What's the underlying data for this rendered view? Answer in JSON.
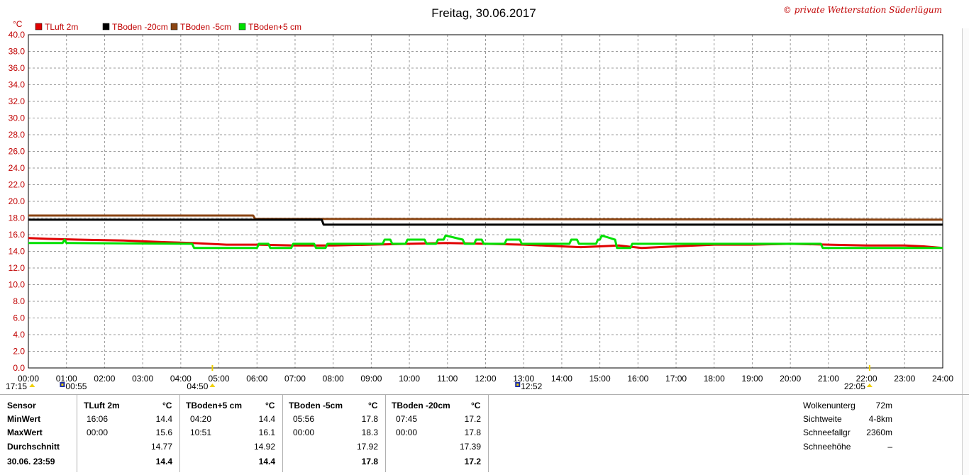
{
  "title": "Freitag, 30.06.2017",
  "copyright": "© private Wetterstation Süderlügum",
  "chart_data": {
    "type": "line",
    "ylabel": "°C",
    "ylim": [
      0,
      40
    ],
    "yticks": [
      "0.0",
      "2.0",
      "4.0",
      "6.0",
      "8.0",
      "10.0",
      "12.0",
      "14.0",
      "16.0",
      "18.0",
      "20.0",
      "22.0",
      "24.0",
      "26.0",
      "28.0",
      "30.0",
      "32.0",
      "34.0",
      "36.0",
      "38.0",
      "40.0"
    ],
    "xlim": [
      0,
      24
    ],
    "xticks": [
      "00:00",
      "01:00",
      "02:00",
      "03:00",
      "04:00",
      "05:00",
      "06:00",
      "07:00",
      "08:00",
      "09:00",
      "10:00",
      "11:00",
      "12:00",
      "13:00",
      "14:00",
      "15:00",
      "16:00",
      "17:00",
      "18:00",
      "19:00",
      "20:00",
      "21:00",
      "22:00",
      "23:00",
      "24:00"
    ],
    "grid": true,
    "legend_position": "top-left",
    "series": [
      {
        "name": "TLuft 2m",
        "color": "#e00000",
        "x": [
          0,
          0.5,
          1.3,
          2.5,
          3.6,
          4.3,
          5.2,
          6.0,
          7.0,
          8.0,
          9.0,
          10.0,
          11.0,
          12.0,
          13.0,
          14.0,
          14.5,
          15.0,
          15.5,
          16.1,
          17.0,
          18.0,
          19.0,
          20.0,
          21.0,
          22.0,
          23.0,
          23.5,
          24.0
        ],
        "y": [
          15.6,
          15.5,
          15.4,
          15.3,
          15.1,
          15.0,
          14.8,
          14.8,
          14.7,
          14.7,
          14.8,
          14.9,
          15.0,
          14.9,
          14.8,
          14.6,
          14.5,
          14.6,
          14.7,
          14.4,
          14.6,
          14.8,
          14.8,
          14.9,
          14.8,
          14.7,
          14.7,
          14.6,
          14.4
        ]
      },
      {
        "name": "TBoden -20cm",
        "color": "#000000",
        "x": [
          0,
          5.95,
          6.0,
          7.7,
          7.75,
          24.0
        ],
        "y": [
          17.8,
          17.8,
          17.8,
          17.8,
          17.2,
          17.2
        ]
      },
      {
        "name": "TBoden -5cm",
        "color": "#8b4513",
        "x": [
          0,
          5.9,
          5.95,
          24.0
        ],
        "y": [
          18.3,
          18.3,
          17.9,
          17.8
        ]
      },
      {
        "name": "TBoden+5 cm",
        "color": "#00e000",
        "x": [
          0,
          0.9,
          0.95,
          1.0,
          1.05,
          4.3,
          4.35,
          6.0,
          6.05,
          6.3,
          6.35,
          6.9,
          6.95,
          7.5,
          7.55,
          7.8,
          7.85,
          9.3,
          9.35,
          9.5,
          9.55,
          9.9,
          9.95,
          10.4,
          10.45,
          10.7,
          10.75,
          10.9,
          10.95,
          11.4,
          11.45,
          11.7,
          11.75,
          11.9,
          11.95,
          12.5,
          12.55,
          12.9,
          12.95,
          14.2,
          14.25,
          14.4,
          14.45,
          14.9,
          14.95,
          15.0,
          15.05,
          15.4,
          15.45,
          15.8,
          15.85,
          20.8,
          20.85,
          24.0
        ],
        "y": [
          15.0,
          15.0,
          15.4,
          15.0,
          15.0,
          14.9,
          14.4,
          14.4,
          14.9,
          14.9,
          14.4,
          14.4,
          14.9,
          14.9,
          14.4,
          14.4,
          14.9,
          14.9,
          15.4,
          15.4,
          14.9,
          14.9,
          15.4,
          15.4,
          14.9,
          14.9,
          15.4,
          15.4,
          15.9,
          15.4,
          14.9,
          14.9,
          15.4,
          15.4,
          14.9,
          14.9,
          15.4,
          15.4,
          14.9,
          14.9,
          15.4,
          15.4,
          14.9,
          14.9,
          15.4,
          15.4,
          15.9,
          15.4,
          14.4,
          14.4,
          14.9,
          14.9,
          14.4,
          14.4
        ]
      }
    ],
    "events": [
      {
        "label": "17:15",
        "x": 0.1,
        "icon": "sunset-icon"
      },
      {
        "label": "00:55",
        "x": 0.92,
        "icon": "moonset-icon"
      },
      {
        "label": "04:50",
        "x": 4.83,
        "icon": "sunrise-icon"
      },
      {
        "label": "12:52",
        "x": 12.87,
        "icon": "moonrise-icon"
      },
      {
        "label": "22:05",
        "x": 22.08,
        "icon": "sunset-icon"
      }
    ]
  },
  "stats": {
    "labels": {
      "sensor": "Sensor",
      "min": "MinWert",
      "max": "MaxWert",
      "avg": "Durchschnitt",
      "last": "30.06. 23:59"
    },
    "unit": "°C",
    "columns": [
      {
        "name": "TLuft 2m",
        "min_time": "16:06",
        "min": "14.4",
        "max_time": "00:00",
        "max": "15.6",
        "avg": "14.77",
        "last": "14.4"
      },
      {
        "name": "TBoden+5 cm",
        "min_time": "04:20",
        "min": "14.4",
        "max_time": "10:51",
        "max": "16.1",
        "avg": "14.92",
        "last": "14.4"
      },
      {
        "name": "TBoden -5cm",
        "min_time": "05:56",
        "min": "17.8",
        "max_time": "00:00",
        "max": "18.3",
        "avg": "17.92",
        "last": "17.8"
      },
      {
        "name": "TBoden -20cm",
        "min_time": "07:45",
        "min": "17.2",
        "max_time": "00:00",
        "max": "17.8",
        "avg": "17.39",
        "last": "17.2"
      }
    ],
    "extra": [
      {
        "label": "Wolkenunterg",
        "value": "72m"
      },
      {
        "label": "Sichtweite",
        "value": "4-8km"
      },
      {
        "label": "Schneefallgr",
        "value": "2360m"
      },
      {
        "label": "Schneehöhe",
        "value": "–"
      }
    ]
  }
}
